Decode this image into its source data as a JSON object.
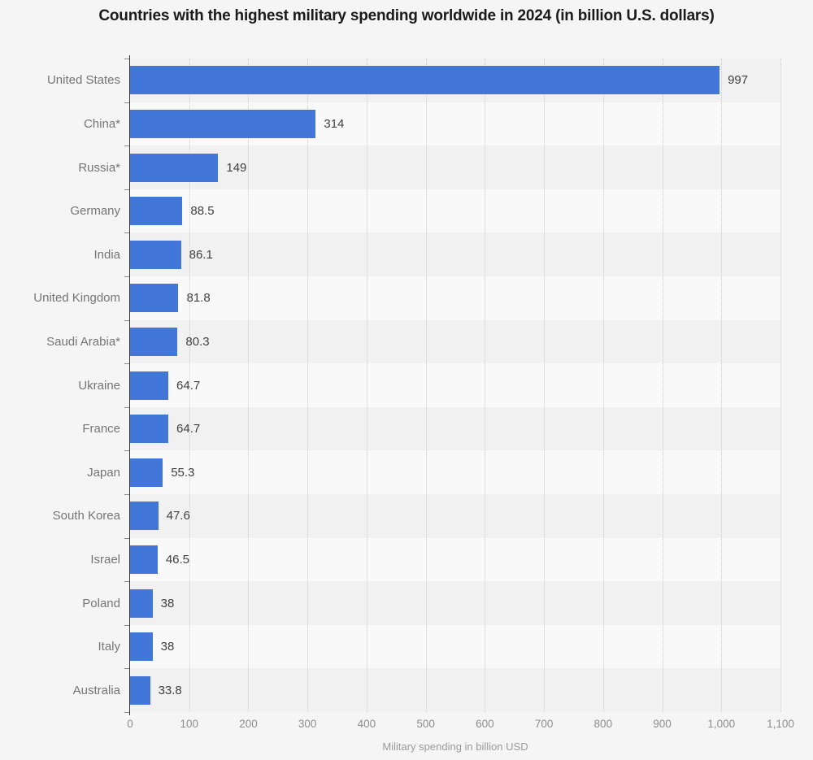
{
  "chart_data": {
    "type": "bar",
    "orientation": "horizontal",
    "title": "Countries with the highest military spending worldwide in 2024 (in billion U.S. dollars)",
    "xlabel": "Military spending in billion USD",
    "ylabel": "",
    "xlim": [
      0,
      1100
    ],
    "grid": "vertical-dotted",
    "legend": "none",
    "bar_color": "#4376d9",
    "row_band_colors": [
      "#f1f1f1",
      "#f9f9f9"
    ],
    "categories": [
      "United States",
      "China*",
      "Russia*",
      "Germany",
      "India",
      "United Kingdom",
      "Saudi Arabia*",
      "Ukraine",
      "France",
      "Japan",
      "South Korea",
      "Israel",
      "Poland",
      "Italy",
      "Australia"
    ],
    "values": [
      997,
      314,
      149,
      88.5,
      86.1,
      81.8,
      80.3,
      64.7,
      64.7,
      55.3,
      47.6,
      46.5,
      38,
      38,
      33.8
    ],
    "value_labels": [
      "997",
      "314",
      "149",
      "88.5",
      "86.1",
      "81.8",
      "80.3",
      "64.7",
      "64.7",
      "55.3",
      "47.6",
      "46.5",
      "38",
      "38",
      "33.8"
    ],
    "x_tick_values": [
      0,
      100,
      200,
      300,
      400,
      500,
      600,
      700,
      800,
      900,
      1000,
      1100
    ],
    "x_tick_labels": [
      "0",
      "100",
      "200",
      "300",
      "400",
      "500",
      "600",
      "700",
      "800",
      "900",
      "1,000",
      "1,100"
    ]
  }
}
